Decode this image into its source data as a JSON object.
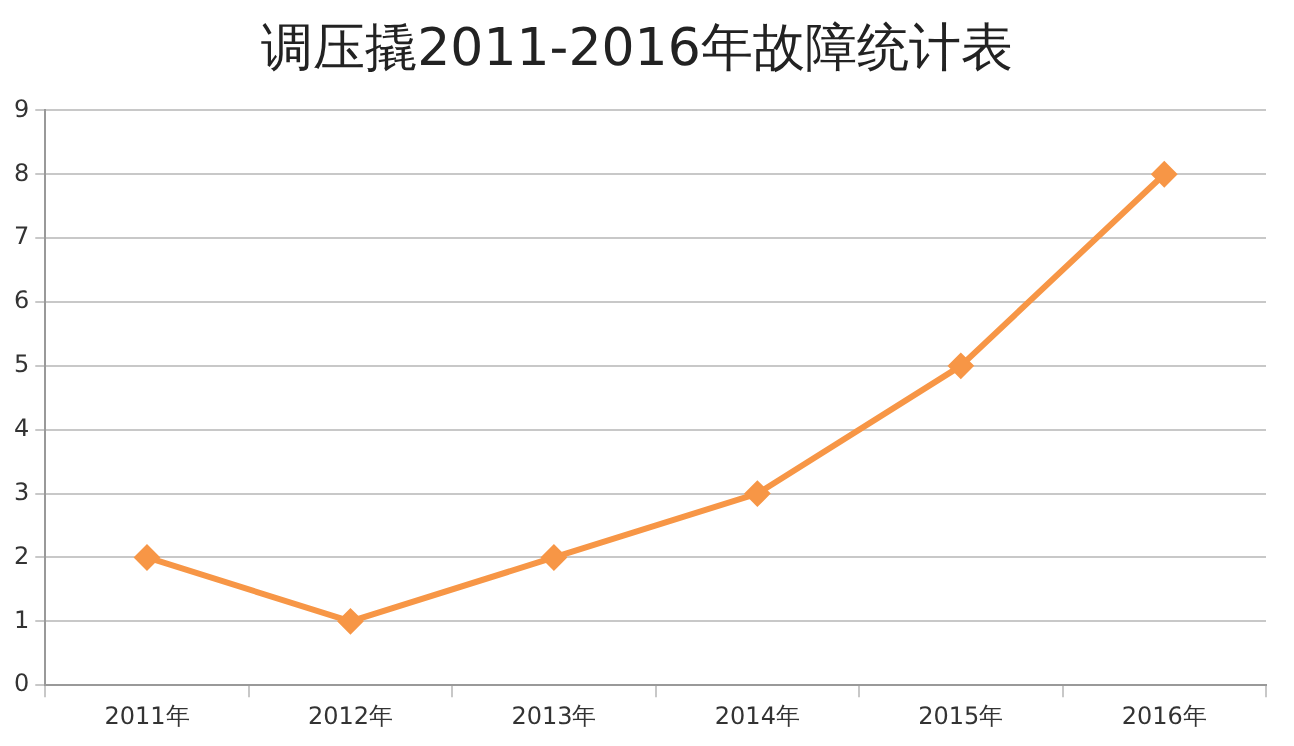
{
  "chart_data": {
    "type": "line",
    "title": "调压撬2011-2016年故障统计表",
    "categories": [
      "2011年",
      "2012年",
      "2013年",
      "2014年",
      "2015年",
      "2016年"
    ],
    "series": [
      {
        "color": "#f79646",
        "values": [
          2,
          1,
          2,
          3,
          5,
          8
        ]
      }
    ],
    "ylim": [
      0,
      9
    ],
    "yticks": [
      0,
      1,
      2,
      3,
      4,
      5,
      6,
      7,
      8,
      9
    ],
    "grid": "y",
    "legend": false,
    "marker": "diamond",
    "line_style": "solid"
  }
}
